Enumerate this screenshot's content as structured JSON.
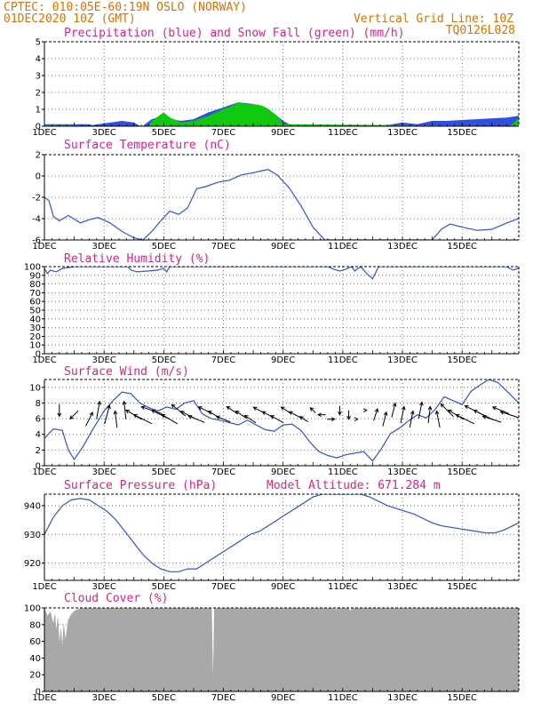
{
  "header": {
    "left1": "CPTEC:  010:05E-60:19N  OSLO (NORWAY)",
    "left2": "01DEC2020 10Z (GMT)",
    "right1": "Vertical Grid Line: 10Z",
    "right2": "TQ0126L028"
  },
  "colors": {
    "header": "#e07000",
    "title": "#e0208a",
    "blue": "#3050e0",
    "green": "#10c810",
    "cloud": "#a8a8a8"
  },
  "chart_data": [
    {
      "type": "area",
      "title": "Precipitation (blue) and Snow Fall (green) (mm/h)",
      "ylim": [
        0,
        5
      ],
      "yticks": [
        0,
        1,
        2,
        3,
        4,
        5
      ],
      "xticks": [
        "1DEC",
        "3DEC",
        "5DEC",
        "7DEC",
        "9DEC",
        "11DEC",
        "13DEC",
        "15DEC"
      ],
      "grid": true,
      "series": [
        {
          "name": "blue",
          "x": [
            0,
            1.5,
            1.6,
            2.0,
            2.2,
            2.6,
            3.0,
            3.2,
            3.3,
            3.6,
            4.0,
            4.2,
            4.6,
            5.0,
            5.5,
            6.0,
            6.5,
            7.0,
            7.5,
            8.0,
            8.2,
            8.4,
            8.8,
            9.5,
            10.0,
            10.5,
            11.0,
            11.5,
            12.0,
            12.5,
            13.0,
            13.5,
            14.0,
            14.5,
            15.0,
            15.5,
            15.9
          ],
          "values": [
            0.1,
            0.1,
            0.05,
            0.15,
            0.2,
            0.3,
            0.2,
            0.0,
            0.0,
            0.4,
            0.6,
            0.4,
            0.3,
            0.4,
            0.8,
            1.1,
            1.4,
            1.3,
            1.0,
            0.3,
            0.1,
            0.05,
            0.0,
            0.0,
            0.0,
            0.05,
            0.0,
            0.05,
            0.2,
            0.1,
            0.3,
            0.3,
            0.35,
            0.4,
            0.45,
            0.5,
            0.6
          ]
        },
        {
          "name": "green",
          "x": [
            0,
            1.0,
            1.3,
            2.5,
            2.8,
            3.0,
            3.3,
            3.5,
            3.6,
            4.0,
            4.2,
            4.6,
            5.0,
            5.5,
            6.0,
            6.3,
            6.5,
            6.8,
            7.0,
            7.3,
            7.5,
            7.8,
            8.0,
            15.6,
            15.8,
            15.9
          ],
          "values": [
            0.05,
            0.05,
            0.0,
            0.0,
            0.0,
            0.0,
            0.0,
            0.0,
            0.3,
            0.8,
            0.5,
            0.2,
            0.3,
            0.6,
            1.0,
            1.2,
            1.4,
            1.3,
            1.3,
            1.2,
            1.0,
            0.6,
            0.1,
            0.0,
            0.3,
            0.5
          ]
        }
      ]
    },
    {
      "type": "line",
      "title": "Surface Temperature (nC)",
      "ylim": [
        -6,
        2
      ],
      "yticks": [
        -6,
        -4,
        -2,
        0,
        2
      ],
      "grid": true,
      "series": [
        {
          "x": [
            0,
            0.15,
            0.3,
            0.5,
            0.8,
            1.2,
            1.5,
            1.8,
            2.2,
            2.6,
            3.0,
            3.3,
            3.6,
            3.9,
            4.2,
            4.5,
            4.8,
            5.1,
            5.4,
            5.8,
            6.2,
            6.6,
            7.0,
            7.3,
            7.5,
            7.8,
            8.2,
            8.6,
            9.0,
            9.4,
            13.0,
            13.3,
            13.6,
            14.0,
            14.5,
            15.0,
            15.5,
            15.9
          ],
          "values": [
            -2.0,
            -2.3,
            -3.8,
            -4.2,
            -3.7,
            -4.4,
            -4.1,
            -3.9,
            -4.4,
            -5.2,
            -5.8,
            -6.0,
            -5.2,
            -4.2,
            -3.3,
            -3.6,
            -3.0,
            -1.2,
            -1.0,
            -0.6,
            -0.4,
            0.1,
            0.3,
            0.5,
            0.6,
            0.1,
            -1.1,
            -2.8,
            -4.8,
            -6.0,
            -6.0,
            -5.0,
            -4.5,
            -4.8,
            -5.1,
            -5.0,
            -4.4,
            -4.0
          ]
        }
      ]
    },
    {
      "type": "line",
      "title": "Relative Humidity (%)",
      "ylim": [
        0,
        100
      ],
      "yticks": [
        0,
        10,
        20,
        30,
        40,
        50,
        60,
        70,
        80,
        90,
        100
      ],
      "grid": true,
      "series": [
        {
          "x": [
            0,
            0.1,
            0.2,
            0.4,
            0.6,
            0.8,
            1.0,
            2.8,
            2.9,
            3.1,
            3.5,
            3.8,
            4.0,
            4.1,
            4.2,
            9.5,
            9.7,
            9.9,
            10.1,
            10.3,
            10.4,
            10.6,
            10.8,
            11.0,
            11.2,
            15.5,
            15.7,
            15.9
          ],
          "values": [
            98,
            92,
            96,
            94,
            98,
            99,
            100,
            100,
            96,
            94,
            95,
            96,
            98,
            94,
            100,
            100,
            97,
            95,
            97,
            100,
            95,
            100,
            92,
            86,
            100,
            100,
            96,
            98
          ]
        }
      ]
    },
    {
      "type": "line",
      "title": "Surface Wind (m/s)",
      "ylim": [
        0,
        11
      ],
      "yticks": [
        0,
        2,
        4,
        6,
        8,
        10
      ],
      "grid": true,
      "series": [
        {
          "x": [
            0,
            0.3,
            0.6,
            0.8,
            1.0,
            1.3,
            1.6,
            2.0,
            2.3,
            2.6,
            2.9,
            3.2,
            3.5,
            3.8,
            4.1,
            4.4,
            4.7,
            5.0,
            5.3,
            5.6,
            5.9,
            6.2,
            6.5,
            6.8,
            7.1,
            7.4,
            7.7,
            8.0,
            8.3,
            8.6,
            8.9,
            9.2,
            9.5,
            9.8,
            10.1,
            10.4,
            10.7,
            11.0,
            11.3,
            11.6,
            11.9,
            12.2,
            12.5,
            12.8,
            13.1,
            13.4,
            13.7,
            14.0,
            14.3,
            14.6,
            14.9,
            15.2,
            15.5,
            15.9
          ],
          "values": [
            3.5,
            4.7,
            4.5,
            2.0,
            0.8,
            2.5,
            4.5,
            7.0,
            8.3,
            9.4,
            9.2,
            8.0,
            7.4,
            7.0,
            7.5,
            7.2,
            8.0,
            8.3,
            6.6,
            6.0,
            5.8,
            5.5,
            5.2,
            5.8,
            5.2,
            4.6,
            4.4,
            5.2,
            5.3,
            4.5,
            3.0,
            1.8,
            1.3,
            1.0,
            1.4,
            1.6,
            1.8,
            0.6,
            2.2,
            4.1,
            4.8,
            5.7,
            6.5,
            6.1,
            7.2,
            8.8,
            8.3,
            7.8,
            9.5,
            10.3,
            11.0,
            10.6,
            9.5,
            8.0
          ]
        }
      ],
      "arrows": {
        "x": [
          0.5,
          1.0,
          1.5,
          1.8,
          2.1,
          2.4,
          2.7,
          3.0,
          3.3,
          3.6,
          3.9,
          4.2,
          4.5,
          4.8,
          5.1,
          5.4,
          5.7,
          6.0,
          6.3,
          6.6,
          6.9,
          7.2,
          7.5,
          7.8,
          8.1,
          8.4,
          8.7,
          9.0,
          9.3,
          9.6,
          9.9,
          10.2,
          10.5,
          10.8,
          11.1,
          11.4,
          11.7,
          12.0,
          12.3,
          12.6,
          12.9,
          13.2,
          13.5,
          13.8,
          14.1,
          14.4,
          14.7,
          15.0,
          15.3,
          15.6
        ],
        "u": [
          0.0,
          -1.0,
          1.0,
          0.5,
          0.8,
          -0.3,
          -0.3,
          -2.5,
          -3.0,
          -3.5,
          -3.0,
          -2.5,
          -2.2,
          -2.0,
          -2.5,
          -2.0,
          -1.7,
          -2.0,
          -1.5,
          -1.5,
          -1.5,
          -1.5,
          -1.5,
          -1.8,
          -1.2,
          -1.5,
          -0.8,
          -0.3,
          -0.5,
          0.5,
          0.0,
          0.0,
          0.0,
          0.0,
          0.5,
          0.5,
          0.5,
          0.5,
          0.5,
          0.5,
          0.3,
          -0.5,
          -2.0,
          -2.5,
          -3.0,
          -3.0,
          -3.0,
          -3.0,
          -2.5,
          -3.0
        ],
        "v": [
          -1.5,
          -1.0,
          2.0,
          2.8,
          3.0,
          2.5,
          2.8,
          1.5,
          1.5,
          1.2,
          1.5,
          1.5,
          1.8,
          1.0,
          1.0,
          1.0,
          1.0,
          0.8,
          1.0,
          1.0,
          1.0,
          0.8,
          0.8,
          1.0,
          0.8,
          0.8,
          0.5,
          0.3,
          0.0,
          0.0,
          -0.8,
          -0.8,
          0.0,
          0.0,
          1.5,
          2.0,
          2.0,
          2.5,
          2.5,
          2.5,
          2.5,
          2.5,
          2.0,
          1.5,
          1.5,
          1.5,
          1.5,
          1.0,
          1.0,
          1.0
        ]
      }
    },
    {
      "type": "line",
      "title": "Surface Pressure (hPa)",
      "annotation": "Model Altitude: 671.284 m",
      "ylim": [
        914,
        944
      ],
      "yticks": [
        920,
        930,
        940
      ],
      "grid": true,
      "series": [
        {
          "x": [
            0,
            0.3,
            0.6,
            0.9,
            1.2,
            1.5,
            1.8,
            2.1,
            2.4,
            2.7,
            3.0,
            3.3,
            3.6,
            3.9,
            4.2,
            4.5,
            4.8,
            5.1,
            5.4,
            5.7,
            6.0,
            6.3,
            6.6,
            6.9,
            7.2,
            7.5,
            7.8,
            8.1,
            8.4,
            8.7,
            9.0,
            9.3,
            10.6,
            10.9,
            11.2,
            11.5,
            11.8,
            12.1,
            12.4,
            12.7,
            13.0,
            13.3,
            13.6,
            13.9,
            14.2,
            14.5,
            14.8,
            15.1,
            15.4,
            15.7,
            15.9
          ],
          "values": [
            930,
            936,
            940,
            942,
            942.5,
            942,
            940,
            938,
            935,
            931,
            927,
            923,
            920,
            918,
            917,
            917,
            918,
            918,
            920,
            922,
            924,
            926,
            928,
            930,
            931,
            933,
            935,
            937,
            939,
            941,
            943,
            944,
            944,
            943,
            941.5,
            940,
            939,
            938,
            937,
            935.5,
            934,
            933,
            932.5,
            932,
            931.5,
            931,
            930.5,
            930.5,
            931.5,
            933,
            934
          ]
        }
      ]
    },
    {
      "type": "area",
      "title": "Cloud Cover (%)",
      "ylim": [
        0,
        100
      ],
      "yticks": [
        0,
        20,
        40,
        60,
        80,
        100
      ],
      "grid": true,
      "series": [
        {
          "x": [
            0,
            0.1,
            0.2,
            0.3,
            0.35,
            0.4,
            0.45,
            0.5,
            0.55,
            0.6,
            0.65,
            0.7,
            0.8,
            0.9,
            1.0,
            1.1,
            1.2,
            1.3,
            5.6,
            5.65,
            5.7,
            9.7,
            9.75,
            9.8,
            10.2,
            10.25,
            10.3,
            15.9
          ],
          "values": [
            100,
            90,
            95,
            80,
            92,
            70,
            88,
            55,
            75,
            50,
            80,
            60,
            85,
            92,
            96,
            98,
            99,
            100,
            100,
            0,
            100,
            100,
            97,
            100,
            100,
            95,
            100,
            100
          ]
        }
      ]
    }
  ]
}
